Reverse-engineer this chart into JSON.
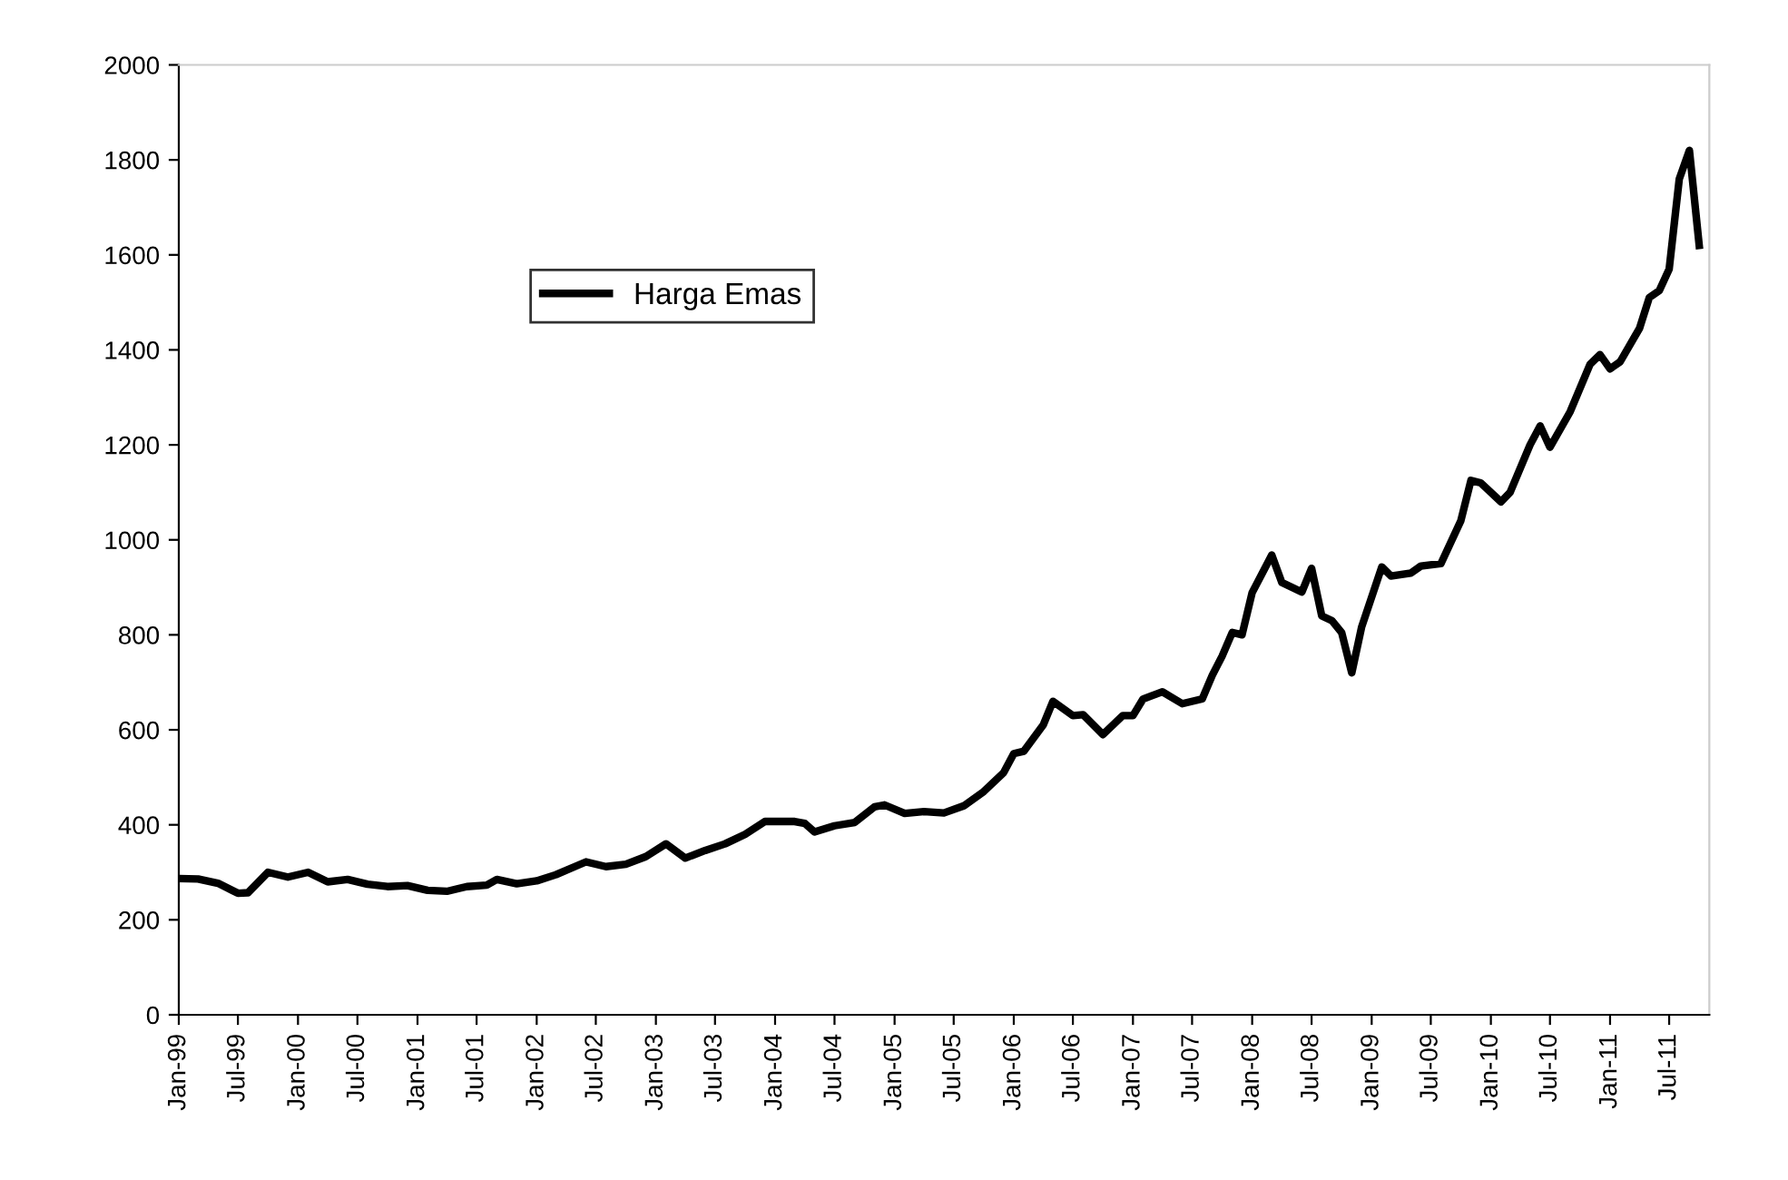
{
  "chart_data": {
    "type": "line",
    "x": [
      "1999-01",
      "1999-03",
      "1999-05",
      "1999-07",
      "1999-08",
      "1999-10",
      "1999-12",
      "2000-02",
      "2000-04",
      "2000-06",
      "2000-08",
      "2000-10",
      "2000-12",
      "2001-02",
      "2001-04",
      "2001-06",
      "2001-08",
      "2001-09",
      "2001-11",
      "2002-01",
      "2002-03",
      "2002-05",
      "2002-06",
      "2002-08",
      "2002-10",
      "2002-12",
      "2003-02",
      "2003-04",
      "2003-06",
      "2003-08",
      "2003-10",
      "2003-12",
      "2004-03",
      "2004-04",
      "2004-05",
      "2004-07",
      "2004-09",
      "2004-11",
      "2004-12",
      "2005-02",
      "2005-04",
      "2005-06",
      "2005-08",
      "2005-10",
      "2005-12",
      "2006-01",
      "2006-02",
      "2006-04",
      "2006-05",
      "2006-07",
      "2006-08",
      "2006-10",
      "2006-12",
      "2007-01",
      "2007-02",
      "2007-04",
      "2007-06",
      "2007-08",
      "2007-09",
      "2007-10",
      "2007-11",
      "2007-12",
      "2008-01",
      "2008-03",
      "2008-04",
      "2008-06",
      "2008-07",
      "2008-08",
      "2008-09",
      "2008-10",
      "2008-11",
      "2008-12",
      "2009-02",
      "2009-03",
      "2009-05",
      "2009-06",
      "2009-08",
      "2009-10",
      "2009-11",
      "2009-12",
      "2010-02",
      "2010-03",
      "2010-05",
      "2010-06",
      "2010-07",
      "2010-09",
      "2010-11",
      "2010-12",
      "2011-01",
      "2011-02",
      "2011-04",
      "2011-05",
      "2011-06",
      "2011-07",
      "2011-08",
      "2011-09",
      "2011-10"
    ],
    "series": [
      {
        "name": "Harga Emas",
        "color": "#000000",
        "values": [
          287,
          286,
          277,
          256,
          257,
          300,
          290,
          300,
          280,
          285,
          275,
          270,
          272,
          262,
          260,
          270,
          273,
          285,
          276,
          282,
          295,
          313,
          322,
          312,
          317,
          333,
          360,
          330,
          346,
          360,
          380,
          407,
          407,
          403,
          385,
          398,
          405,
          438,
          442,
          424,
          428,
          425,
          440,
          470,
          510,
          550,
          555,
          610,
          660,
          630,
          632,
          590,
          630,
          630,
          665,
          680,
          655,
          665,
          715,
          755,
          805,
          800,
          889,
          968,
          910,
          890,
          940,
          840,
          830,
          805,
          720,
          816,
          943,
          924,
          930,
          945,
          950,
          1040,
          1125,
          1120,
          1080,
          1100,
          1200,
          1240,
          1195,
          1270,
          1370,
          1390,
          1360,
          1375,
          1445,
          1510,
          1525,
          1570,
          1760,
          1820,
          1620
        ]
      }
    ],
    "xlim": [
      "1999-01",
      "2011-11"
    ],
    "xticks": [
      {
        "value": "1999-01",
        "label": "Jan-99"
      },
      {
        "value": "1999-07",
        "label": "Jul-99"
      },
      {
        "value": "2000-01",
        "label": "Jan-00"
      },
      {
        "value": "2000-07",
        "label": "Jul-00"
      },
      {
        "value": "2001-01",
        "label": "Jan-01"
      },
      {
        "value": "2001-07",
        "label": "Jul-01"
      },
      {
        "value": "2002-01",
        "label": "Jan-02"
      },
      {
        "value": "2002-07",
        "label": "Jul-02"
      },
      {
        "value": "2003-01",
        "label": "Jan-03"
      },
      {
        "value": "2003-07",
        "label": "Jul-03"
      },
      {
        "value": "2004-01",
        "label": "Jan-04"
      },
      {
        "value": "2004-07",
        "label": "Jul-04"
      },
      {
        "value": "2005-01",
        "label": "Jan-05"
      },
      {
        "value": "2005-07",
        "label": "Jul-05"
      },
      {
        "value": "2006-01",
        "label": "Jan-06"
      },
      {
        "value": "2006-07",
        "label": "Jul-06"
      },
      {
        "value": "2007-01",
        "label": "Jan-07"
      },
      {
        "value": "2007-07",
        "label": "Jul-07"
      },
      {
        "value": "2008-01",
        "label": "Jan-08"
      },
      {
        "value": "2008-07",
        "label": "Jul-08"
      },
      {
        "value": "2009-01",
        "label": "Jan-09"
      },
      {
        "value": "2009-07",
        "label": "Jul-09"
      },
      {
        "value": "2010-01",
        "label": "Jan-10"
      },
      {
        "value": "2010-07",
        "label": "Jul-10"
      },
      {
        "value": "2011-01",
        "label": "Jan-11"
      },
      {
        "value": "2011-07",
        "label": "Jul-11"
      }
    ],
    "ylim": [
      0,
      2000
    ],
    "yticks": [
      0,
      200,
      400,
      600,
      800,
      1000,
      1200,
      1400,
      1600,
      1800,
      2000
    ],
    "grid": false,
    "legend": "top left",
    "marker": "none",
    "line_style": "solid"
  }
}
